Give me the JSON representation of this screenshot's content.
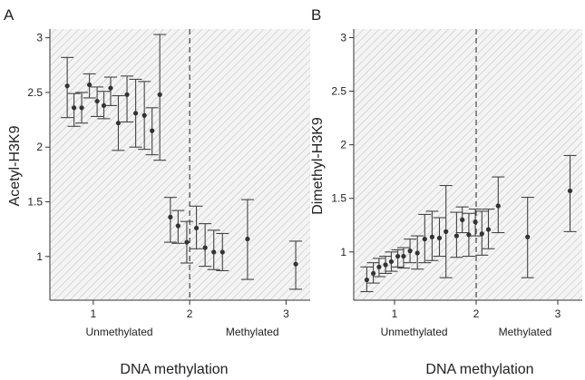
{
  "figure": {
    "background": "#ffffff",
    "hatch_color": "#c8c8c8",
    "panel_fill": "#f3f3f3",
    "marker_color": "#333333"
  },
  "chart_data": [
    {
      "type": "scatter",
      "panel_label": "A",
      "xlabel": "DNA methylation",
      "ylabel": "Acetyl-H3K9",
      "xlim": [
        0.55,
        3.25
      ],
      "ylim": [
        0.6,
        3.08
      ],
      "xticks": [
        1,
        2,
        3
      ],
      "yticks": [
        1,
        1.5,
        2,
        2.5,
        3
      ],
      "ytick_labels": [
        "1",
        "1.5",
        "2",
        "2.5",
        "3"
      ],
      "threshold_x": 2,
      "group_labels": [
        {
          "text": "Unmethylated",
          "x": 1.27
        },
        {
          "text": "Methylated",
          "x": 2.65
        }
      ],
      "grid": false,
      "legend": "none",
      "points": [
        {
          "x": 0.73,
          "y": 2.56,
          "low": 2.27,
          "high": 2.82
        },
        {
          "x": 0.8,
          "y": 2.36,
          "low": 2.19,
          "high": 2.49
        },
        {
          "x": 0.88,
          "y": 2.36,
          "low": 2.22,
          "high": 2.5
        },
        {
          "x": 0.96,
          "y": 2.57,
          "low": 2.45,
          "high": 2.67
        },
        {
          "x": 1.04,
          "y": 2.42,
          "low": 2.28,
          "high": 2.55
        },
        {
          "x": 1.11,
          "y": 2.38,
          "low": 2.26,
          "high": 2.51
        },
        {
          "x": 1.18,
          "y": 2.54,
          "low": 2.38,
          "high": 2.64
        },
        {
          "x": 1.26,
          "y": 2.22,
          "low": 1.97,
          "high": 2.47
        },
        {
          "x": 1.35,
          "y": 2.48,
          "low": 2.23,
          "high": 2.65
        },
        {
          "x": 1.44,
          "y": 2.31,
          "low": 2.0,
          "high": 2.62
        },
        {
          "x": 1.53,
          "y": 2.29,
          "low": 1.98,
          "high": 2.6
        },
        {
          "x": 1.61,
          "y": 2.15,
          "low": 1.93,
          "high": 2.36
        },
        {
          "x": 1.69,
          "y": 2.48,
          "low": 1.88,
          "high": 3.03
        },
        {
          "x": 1.8,
          "y": 1.36,
          "low": 1.13,
          "high": 1.54
        },
        {
          "x": 1.88,
          "y": 1.28,
          "low": 1.12,
          "high": 1.42
        },
        {
          "x": 1.97,
          "y": 1.13,
          "low": 0.94,
          "high": 1.32
        },
        {
          "x": 2.07,
          "y": 1.26,
          "low": 1.07,
          "high": 1.46
        },
        {
          "x": 2.16,
          "y": 1.08,
          "low": 0.91,
          "high": 1.3
        },
        {
          "x": 2.25,
          "y": 1.04,
          "low": 0.88,
          "high": 1.24
        },
        {
          "x": 2.34,
          "y": 1.04,
          "low": 0.87,
          "high": 1.21
        },
        {
          "x": 2.6,
          "y": 1.16,
          "low": 0.79,
          "high": 1.52
        },
        {
          "x": 3.1,
          "y": 0.93,
          "low": 0.7,
          "high": 1.14
        }
      ]
    },
    {
      "type": "scatter",
      "panel_label": "B",
      "xlabel": "DNA methylation",
      "ylabel": "Dimethyl-H3K9",
      "xlim": [
        0.5,
        3.3
      ],
      "ylim": [
        0.55,
        3.08
      ],
      "xticks": [
        1,
        2,
        3
      ],
      "yticks": [
        1,
        1.5,
        2,
        2.5,
        3
      ],
      "ytick_labels": [
        "1",
        "1.5",
        "2",
        "2.5",
        "3"
      ],
      "threshold_x": 2,
      "group_labels": [
        {
          "text": "Unmethylated",
          "x": 1.24
        },
        {
          "text": "Methylated",
          "x": 2.6
        }
      ],
      "grid": false,
      "legend": "none",
      "points": [
        {
          "x": 0.66,
          "y": 0.74,
          "low": 0.63,
          "high": 0.86
        },
        {
          "x": 0.74,
          "y": 0.8,
          "low": 0.71,
          "high": 0.9
        },
        {
          "x": 0.81,
          "y": 0.86,
          "low": 0.77,
          "high": 0.94
        },
        {
          "x": 0.89,
          "y": 0.88,
          "low": 0.8,
          "high": 0.96
        },
        {
          "x": 0.96,
          "y": 0.91,
          "low": 0.82,
          "high": 1.0
        },
        {
          "x": 1.04,
          "y": 0.96,
          "low": 0.86,
          "high": 1.02
        },
        {
          "x": 1.11,
          "y": 0.96,
          "low": 0.85,
          "high": 1.04
        },
        {
          "x": 1.19,
          "y": 1.01,
          "low": 0.9,
          "high": 1.12
        },
        {
          "x": 1.28,
          "y": 0.99,
          "low": 0.84,
          "high": 1.15
        },
        {
          "x": 1.37,
          "y": 1.12,
          "low": 0.9,
          "high": 1.35
        },
        {
          "x": 1.46,
          "y": 1.14,
          "low": 0.92,
          "high": 1.38
        },
        {
          "x": 1.55,
          "y": 1.13,
          "low": 0.96,
          "high": 1.32
        },
        {
          "x": 1.63,
          "y": 1.19,
          "low": 0.76,
          "high": 1.62
        },
        {
          "x": 1.76,
          "y": 1.15,
          "low": 0.95,
          "high": 1.37
        },
        {
          "x": 1.83,
          "y": 1.3,
          "low": 1.18,
          "high": 1.42
        },
        {
          "x": 1.91,
          "y": 1.16,
          "low": 0.96,
          "high": 1.36
        },
        {
          "x": 1.99,
          "y": 1.28,
          "low": 1.15,
          "high": 1.4
        },
        {
          "x": 2.07,
          "y": 1.17,
          "low": 0.97,
          "high": 1.38
        },
        {
          "x": 2.15,
          "y": 1.21,
          "low": 1.03,
          "high": 1.4
        },
        {
          "x": 2.27,
          "y": 1.43,
          "low": 1.18,
          "high": 1.7
        },
        {
          "x": 2.63,
          "y": 1.14,
          "low": 0.76,
          "high": 1.51
        },
        {
          "x": 3.15,
          "y": 1.57,
          "low": 1.19,
          "high": 1.9
        }
      ]
    }
  ]
}
